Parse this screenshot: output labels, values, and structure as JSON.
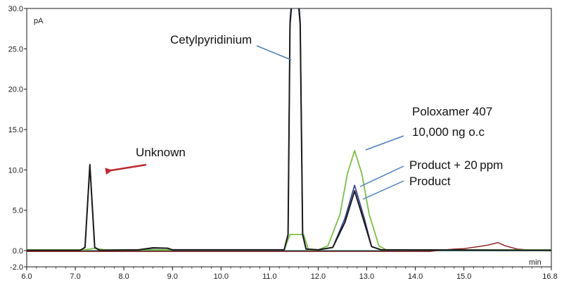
{
  "chart_data": {
    "type": "line",
    "x_unit": "min",
    "y_unit": "pA",
    "xlim": [
      6.0,
      16.8
    ],
    "ylim": [
      -2.0,
      30.0
    ],
    "x_ticks": [
      "6.0",
      "7.0",
      "8.0",
      "9.0",
      "10.0",
      "11.0",
      "12.0",
      "13.0",
      "14.0",
      "15.0",
      "16.8"
    ],
    "y_ticks": [
      "30.0",
      "25.0",
      "20.0",
      "15.0",
      "10.0",
      "5.0",
      "0.0",
      "-2.0"
    ],
    "colors": {
      "black": "#1a1a1a",
      "navy": "#2b3a8f",
      "green": "#7ac143",
      "darkred": "#8b1a1a",
      "teal": "#2e6f6f",
      "blue_leader": "#4a7fc1",
      "red_arrow": "#c0282d"
    },
    "series": [
      {
        "color": "black",
        "points": [
          [
            6.0,
            0.05
          ],
          [
            7.1,
            0.05
          ],
          [
            7.2,
            0.4
          ],
          [
            7.25,
            5.5
          ],
          [
            7.3,
            10.6
          ],
          [
            7.35,
            5.5
          ],
          [
            7.4,
            0.4
          ],
          [
            7.5,
            0.05
          ],
          [
            8.3,
            0.1
          ],
          [
            8.6,
            0.35
          ],
          [
            8.9,
            0.3
          ],
          [
            9.0,
            0.1
          ],
          [
            11.3,
            0.1
          ],
          [
            11.38,
            2.0
          ],
          [
            11.42,
            28.0
          ],
          [
            11.45,
            30.2
          ],
          [
            11.6,
            30.2
          ],
          [
            11.63,
            28.0
          ],
          [
            11.68,
            2.0
          ],
          [
            11.75,
            0.2
          ],
          [
            12.0,
            0.1
          ],
          [
            12.3,
            0.4
          ],
          [
            12.55,
            3.5
          ],
          [
            12.75,
            7.4
          ],
          [
            12.95,
            3.5
          ],
          [
            13.1,
            0.5
          ],
          [
            13.3,
            0.1
          ],
          [
            16.8,
            0.05
          ]
        ]
      },
      {
        "color": "navy",
        "points": [
          [
            6.0,
            0.05
          ],
          [
            7.1,
            0.05
          ],
          [
            7.2,
            0.4
          ],
          [
            7.25,
            5.5
          ],
          [
            7.3,
            10.7
          ],
          [
            7.35,
            5.5
          ],
          [
            7.4,
            0.4
          ],
          [
            7.5,
            0.05
          ],
          [
            8.3,
            0.1
          ],
          [
            8.6,
            0.3
          ],
          [
            8.9,
            0.3
          ],
          [
            9.0,
            0.1
          ],
          [
            11.3,
            0.1
          ],
          [
            11.38,
            2.0
          ],
          [
            11.42,
            28.5
          ],
          [
            11.45,
            30.9
          ],
          [
            11.6,
            30.9
          ],
          [
            11.63,
            28.5
          ],
          [
            11.68,
            2.0
          ],
          [
            11.75,
            0.2
          ],
          [
            12.0,
            0.1
          ],
          [
            12.3,
            0.4
          ],
          [
            12.55,
            4.0
          ],
          [
            12.75,
            8.1
          ],
          [
            12.95,
            4.0
          ],
          [
            13.1,
            0.5
          ],
          [
            13.3,
            0.1
          ],
          [
            16.8,
            0.05
          ]
        ]
      },
      {
        "color": "green",
        "points": [
          [
            6.0,
            0.1
          ],
          [
            7.2,
            0.1
          ],
          [
            7.4,
            0.3
          ],
          [
            7.6,
            0.1
          ],
          [
            11.3,
            0.1
          ],
          [
            11.42,
            2.0
          ],
          [
            11.7,
            2.0
          ],
          [
            11.8,
            0.1
          ],
          [
            12.0,
            0.1
          ],
          [
            12.2,
            0.6
          ],
          [
            12.45,
            4.5
          ],
          [
            12.6,
            9.5
          ],
          [
            12.75,
            12.4
          ],
          [
            12.9,
            9.5
          ],
          [
            13.05,
            4.5
          ],
          [
            13.25,
            0.6
          ],
          [
            13.4,
            0.1
          ],
          [
            16.8,
            0.1
          ]
        ]
      },
      {
        "color": "darkred",
        "points": [
          [
            6.0,
            -0.1
          ],
          [
            14.3,
            -0.1
          ],
          [
            14.5,
            0.05
          ],
          [
            14.8,
            0.2
          ],
          [
            15.0,
            0.25
          ],
          [
            15.3,
            0.5
          ],
          [
            15.5,
            0.7
          ],
          [
            15.7,
            1.0
          ],
          [
            15.85,
            0.6
          ],
          [
            16.1,
            0.2
          ],
          [
            16.4,
            0.05
          ],
          [
            16.8,
            0.0
          ]
        ]
      },
      {
        "color": "teal",
        "points": [
          [
            6.0,
            0.0
          ],
          [
            16.8,
            0.0
          ]
        ]
      }
    ],
    "annotations": [
      {
        "label": "Cetylpyridinium"
      },
      {
        "label": "Unknown"
      },
      {
        "label": "Poloxamer 407"
      },
      {
        "label": "10,000 ng o.c"
      },
      {
        "label": "Product + 20 ppm"
      },
      {
        "label": "Product"
      }
    ]
  }
}
